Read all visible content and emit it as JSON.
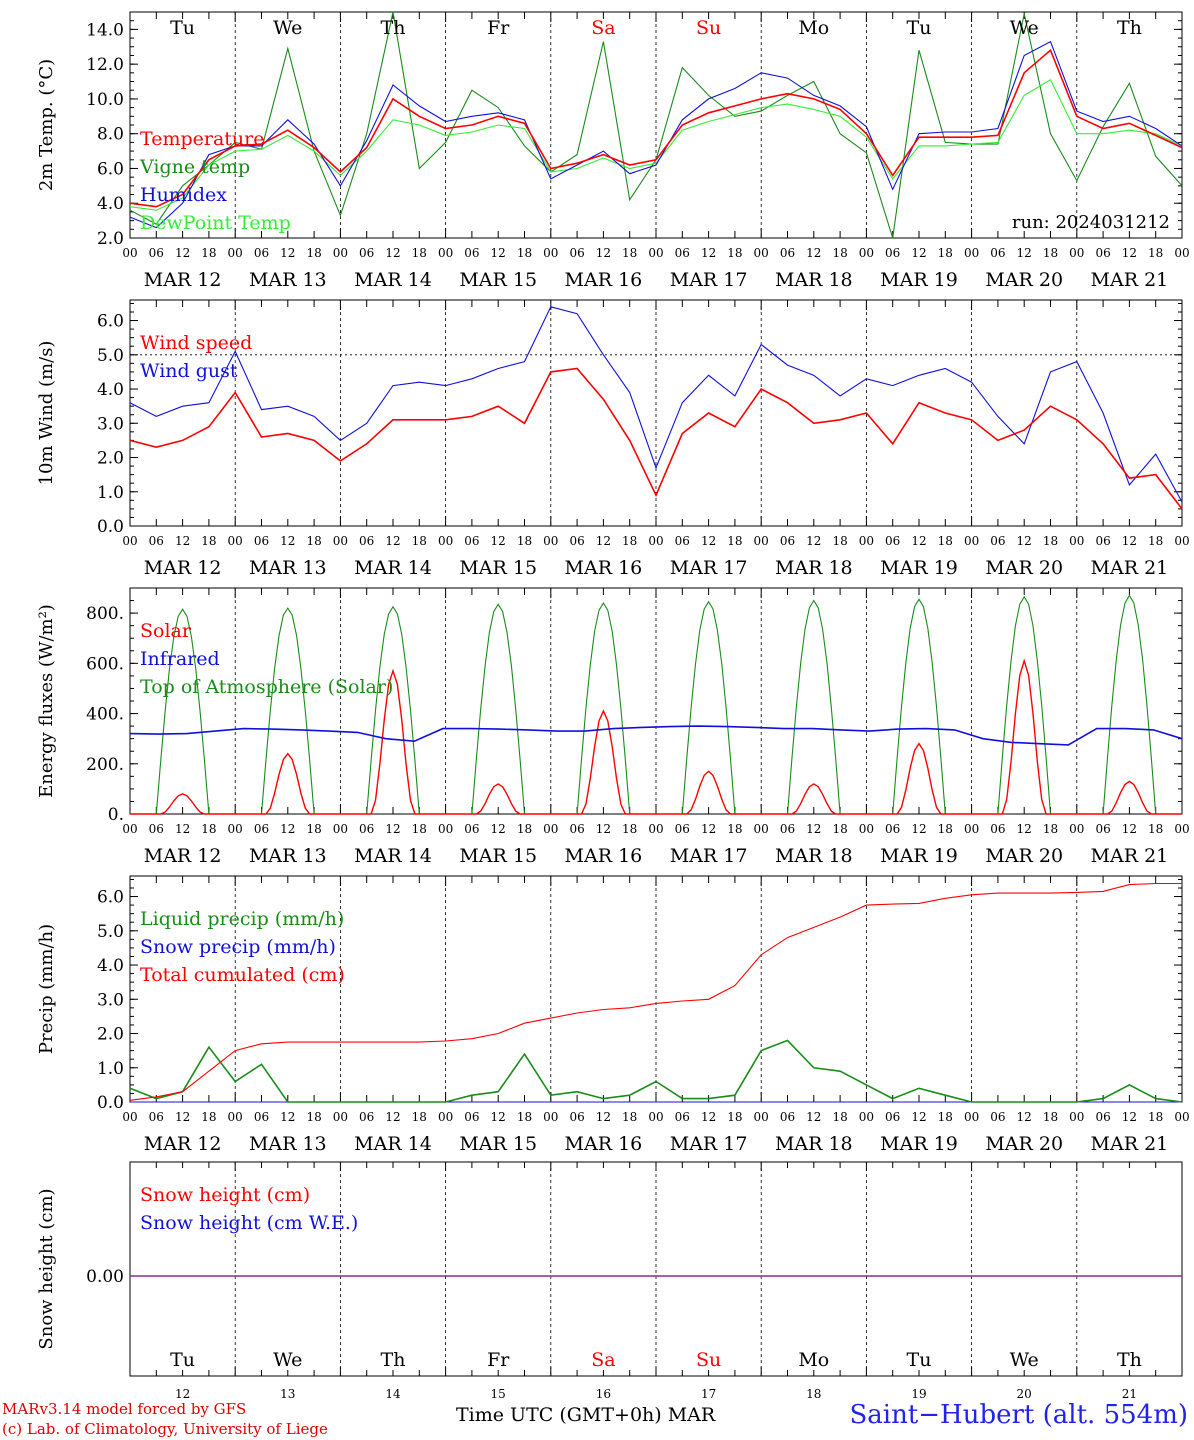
{
  "chart_data": [
    {
      "type": "line",
      "ylabel": "2m Temp. (°C)",
      "ylim": [
        2,
        15
      ],
      "yticks": [
        "2.0",
        "4.0",
        "6.0",
        "8.0",
        "10.0",
        "12.0",
        "14.0"
      ],
      "annotation": "run: 2024031212",
      "x_hours": [
        0,
        6,
        12,
        18,
        24,
        30,
        36,
        42,
        48,
        54,
        60,
        66,
        72,
        78,
        84,
        90,
        96,
        102,
        108,
        114,
        120,
        126,
        132,
        138,
        144,
        150,
        156,
        162,
        168,
        174,
        180,
        186,
        192,
        198,
        204,
        210,
        216,
        222,
        228,
        234,
        240
      ],
      "series": [
        {
          "name": "Temperature",
          "color": "#ff0000",
          "values": [
            4.0,
            3.8,
            4.5,
            6.5,
            7.3,
            7.4,
            8.2,
            7.2,
            5.8,
            7.2,
            10.0,
            9.0,
            8.3,
            8.5,
            9.0,
            8.6,
            6.0,
            6.3,
            6.8,
            6.2,
            6.5,
            8.5,
            9.2,
            9.6,
            10.0,
            10.3,
            10.0,
            9.4,
            8.0,
            5.6,
            7.8,
            7.8,
            7.8,
            7.9,
            11.5,
            12.8,
            9.0,
            8.3,
            8.6,
            7.9,
            7.2
          ]
        },
        {
          "name": "Vigne temp",
          "color": "#1a8c1a",
          "values": [
            3.6,
            2.8,
            5.0,
            6.2,
            7.5,
            7.1,
            12.9,
            7.0,
            3.3,
            8.0,
            15.0,
            6.0,
            7.5,
            10.5,
            9.5,
            7.3,
            5.8,
            6.8,
            13.3,
            4.2,
            6.5,
            11.8,
            10.2,
            9.0,
            9.3,
            10.2,
            11.0,
            8.0,
            6.9,
            2.0,
            12.8,
            7.5,
            7.4,
            7.4,
            14.9,
            8.0,
            5.3,
            8.4,
            10.9,
            6.7,
            5.0
          ]
        },
        {
          "name": "Humidex",
          "color": "#1010dd",
          "values": [
            3.2,
            2.6,
            4.0,
            6.8,
            7.3,
            7.3,
            8.8,
            7.4,
            5.0,
            7.6,
            10.8,
            9.6,
            8.7,
            9.0,
            9.2,
            8.8,
            5.4,
            6.2,
            7.0,
            5.7,
            6.2,
            8.8,
            10.0,
            10.6,
            11.5,
            11.2,
            10.2,
            9.6,
            8.4,
            4.8,
            8.0,
            8.1,
            8.1,
            8.3,
            12.5,
            13.3,
            9.3,
            8.7,
            9.0,
            8.3,
            7.3
          ]
        },
        {
          "name": "DewPoint Temp",
          "color": "#33ee33",
          "values": [
            3.8,
            3.6,
            4.3,
            6.2,
            7.0,
            7.1,
            7.9,
            7.0,
            5.6,
            7.0,
            8.8,
            8.5,
            7.9,
            8.1,
            8.5,
            8.3,
            5.8,
            6.0,
            6.6,
            6.0,
            6.3,
            8.2,
            8.7,
            9.1,
            9.5,
            9.7,
            9.4,
            9.0,
            7.8,
            5.4,
            7.3,
            7.3,
            7.4,
            7.5,
            10.2,
            11.1,
            8.0,
            8.0,
            8.2,
            8.0,
            7.3
          ]
        }
      ]
    },
    {
      "type": "line",
      "ylabel": "10m Wind (m/s)",
      "ylim": [
        0,
        6.6
      ],
      "yticks": [
        "0.0",
        "1.0",
        "2.0",
        "3.0",
        "4.0",
        "5.0",
        "6.0"
      ],
      "ref_line": 5.0,
      "x_hours": [
        0,
        6,
        12,
        18,
        24,
        30,
        36,
        42,
        48,
        54,
        60,
        66,
        72,
        78,
        84,
        90,
        96,
        102,
        108,
        114,
        120,
        126,
        132,
        138,
        144,
        150,
        156,
        162,
        168,
        174,
        180,
        186,
        192,
        198,
        204,
        210,
        216,
        222,
        228,
        234,
        240
      ],
      "series": [
        {
          "name": "Wind speed",
          "color": "#ff0000",
          "values": [
            2.5,
            2.3,
            2.5,
            2.9,
            3.9,
            2.6,
            2.7,
            2.5,
            1.9,
            2.4,
            3.1,
            3.1,
            3.1,
            3.2,
            3.5,
            3.0,
            4.5,
            4.6,
            3.7,
            2.5,
            0.9,
            2.7,
            3.3,
            2.9,
            4.0,
            3.6,
            3.0,
            3.1,
            3.3,
            2.4,
            3.6,
            3.3,
            3.1,
            2.5,
            2.8,
            3.5,
            3.1,
            2.4,
            1.4,
            1.5,
            0.5
          ]
        },
        {
          "name": "Wind gust",
          "color": "#1010dd",
          "values": [
            3.6,
            3.2,
            3.5,
            3.6,
            5.1,
            3.4,
            3.5,
            3.2,
            2.5,
            3.0,
            4.1,
            4.2,
            4.1,
            4.3,
            4.6,
            4.8,
            6.4,
            6.2,
            5.0,
            3.9,
            1.7,
            3.6,
            4.4,
            3.8,
            5.3,
            4.7,
            4.4,
            3.8,
            4.3,
            4.1,
            4.4,
            4.6,
            4.2,
            3.2,
            2.4,
            4.5,
            4.8,
            3.3,
            1.2,
            2.1,
            0.7
          ]
        }
      ]
    },
    {
      "type": "line",
      "ylabel": "Energy fluxes (W/m²)",
      "ylim": [
        0,
        900
      ],
      "yticks": [
        "0.",
        "200.",
        "400.",
        "600.",
        "800."
      ],
      "series": [
        {
          "name": "Solar",
          "color": "#ff0000",
          "daily_peaks": [
            80,
            240,
            570,
            120,
            410,
            170,
            120,
            280,
            610,
            130
          ]
        },
        {
          "name": "Infrared",
          "color": "#1010dd",
          "values": [
            320,
            318,
            320,
            330,
            340,
            338,
            335,
            330,
            325,
            300,
            290,
            340,
            340,
            338,
            335,
            330,
            330,
            340,
            345,
            348,
            350,
            348,
            345,
            340,
            340,
            335,
            330,
            338,
            340,
            335,
            300,
            285,
            280,
            275,
            340,
            340,
            335,
            300
          ]
        },
        {
          "name": "Top of Atmosphere (Solar)",
          "color": "#1a8c1a",
          "daily_peaks": [
            815,
            820,
            825,
            835,
            840,
            845,
            850,
            855,
            865,
            870
          ]
        }
      ]
    },
    {
      "type": "line",
      "ylabel": "Precip (mm/h)",
      "ylim": [
        0,
        6.6
      ],
      "yticks": [
        "0.0",
        "1.0",
        "2.0",
        "3.0",
        "4.0",
        "5.0",
        "6.0"
      ],
      "series": [
        {
          "name": "Liquid precip (mm/h)",
          "color": "#1a8c1a",
          "values": [
            0.4,
            0.1,
            0.3,
            1.6,
            0.6,
            1.1,
            0.0,
            0.0,
            0.0,
            0.0,
            0.0,
            0.0,
            0.0,
            0.2,
            0.3,
            1.4,
            0.2,
            0.3,
            0.1,
            0.2,
            0.6,
            0.1,
            0.1,
            0.2,
            1.5,
            1.8,
            1.0,
            0.9,
            0.5,
            0.1,
            0.4,
            0.2,
            0.0,
            0.0,
            0.0,
            0.0,
            0.0,
            0.1,
            0.5,
            0.1,
            0.0
          ]
        },
        {
          "name": "Snow precip (mm/h)",
          "color": "#1010dd",
          "values": [
            0,
            0,
            0,
            0,
            0,
            0,
            0,
            0,
            0,
            0,
            0,
            0,
            0,
            0,
            0,
            0,
            0,
            0,
            0,
            0,
            0,
            0,
            0,
            0,
            0,
            0,
            0,
            0,
            0,
            0,
            0,
            0,
            0,
            0,
            0,
            0,
            0,
            0,
            0,
            0,
            0
          ]
        },
        {
          "name": "Total cumulated (cm)",
          "color": "#ff0000",
          "values": [
            0.05,
            0.15,
            0.3,
            0.9,
            1.5,
            1.7,
            1.75,
            1.75,
            1.75,
            1.75,
            1.75,
            1.75,
            1.78,
            1.85,
            2.0,
            2.3,
            2.45,
            2.6,
            2.7,
            2.75,
            2.88,
            2.95,
            3.0,
            3.4,
            4.3,
            4.8,
            5.1,
            5.4,
            5.75,
            5.78,
            5.8,
            5.95,
            6.05,
            6.1,
            6.1,
            6.1,
            6.12,
            6.15,
            6.35,
            6.38,
            6.38
          ]
        }
      ]
    },
    {
      "type": "line",
      "ylabel": "Snow height (cm)",
      "yticks": [
        "0.00"
      ],
      "series": [
        {
          "name": "Snow height (cm)",
          "color": "#ff0000",
          "values": [
            0,
            0
          ]
        },
        {
          "name": "Snow height (cm W.E.)",
          "color": "#1010dd",
          "values": [
            0,
            0
          ]
        }
      ]
    }
  ],
  "days": [
    {
      "abbr": "Tu",
      "date": "MAR 12",
      "num": "12",
      "color": "#000000"
    },
    {
      "abbr": "We",
      "date": "MAR 13",
      "num": "13",
      "color": "#000000"
    },
    {
      "abbr": "Th",
      "date": "MAR 14",
      "num": "14",
      "color": "#000000"
    },
    {
      "abbr": "Fr",
      "date": "MAR 15",
      "num": "15",
      "color": "#000000"
    },
    {
      "abbr": "Sa",
      "date": "MAR 16",
      "num": "16",
      "color": "#ff0000"
    },
    {
      "abbr": "Su",
      "date": "MAR 17",
      "num": "17",
      "color": "#ff0000"
    },
    {
      "abbr": "Mo",
      "date": "MAR 18",
      "num": "18",
      "color": "#000000"
    },
    {
      "abbr": "Tu",
      "date": "MAR 19",
      "num": "19",
      "color": "#000000"
    },
    {
      "abbr": "We",
      "date": "MAR 20",
      "num": "20",
      "color": "#000000"
    },
    {
      "abbr": "Th",
      "date": "MAR 21",
      "num": "21",
      "color": "#000000"
    }
  ],
  "hour_ticks": [
    "00",
    "06",
    "12",
    "18"
  ],
  "footer": {
    "model_line1": "MARv3.14 model forced by GFS",
    "model_line2": "(c) Lab. of Climatology, University of Liege",
    "xlabel": "Time UTC (GMT+0h) MAR",
    "station": "Saint−Hubert (alt. 554m)"
  }
}
